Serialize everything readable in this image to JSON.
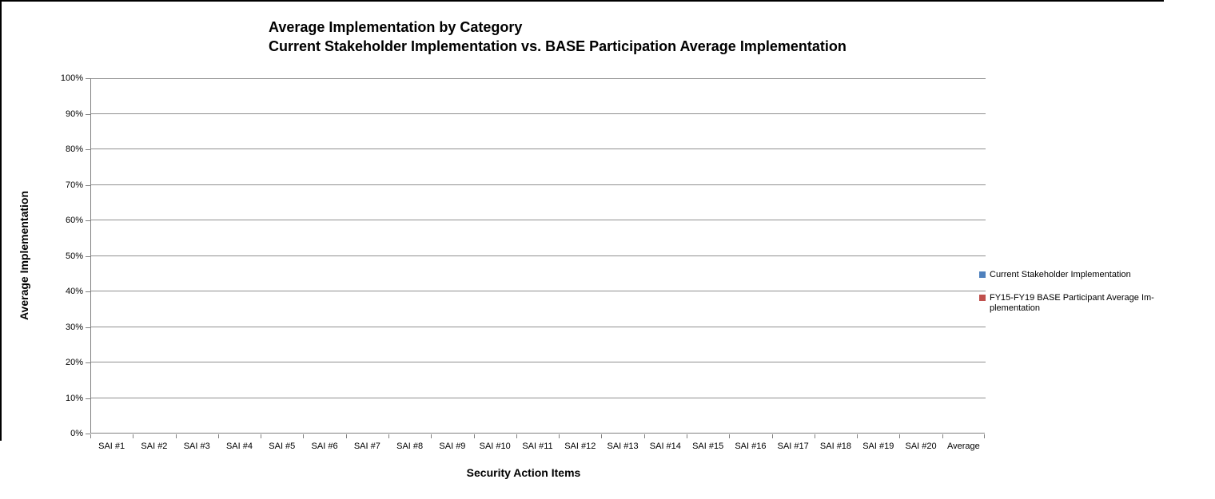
{
  "chart_data": {
    "type": "bar",
    "title": "Average Implementation by Category",
    "subtitle": "Current Stakeholder Implementation vs. BASE Participation Average Implementation",
    "xlabel": "Security Action Items",
    "ylabel": "Average Implementation",
    "categories": [
      "SAI #1",
      "SAI #2",
      "SAI #3",
      "SAI #4",
      "SAI #5",
      "SAI #6",
      "SAI #7",
      "SAI #8",
      "SAI #9",
      "SAI #10",
      "SAI #11",
      "SAI #12",
      "SAI #13",
      "SAI #14",
      "SAI #15",
      "SAI #16",
      "SAI #17",
      "SAI #18",
      "SAI #19",
      "SAI #20",
      "Average"
    ],
    "series": [
      {
        "name": "Current Stakeholder Implementation",
        "color": "#4F81BD",
        "values": [
          0,
          0,
          0,
          0,
          0,
          0,
          0,
          0,
          0,
          0,
          0,
          0,
          0,
          0,
          0,
          0,
          0,
          0,
          0,
          0,
          0
        ]
      },
      {
        "name": "FY15-FY19 BASE Participant Average Implementation",
        "color": "#C0504D",
        "values": [
          0,
          0,
          0,
          0,
          0,
          0,
          0,
          0,
          0,
          0,
          0,
          0,
          0,
          0,
          0,
          0,
          0,
          0,
          0,
          0,
          0
        ]
      }
    ],
    "ylim": [
      0,
      100
    ],
    "ytick_labels": [
      "0%",
      "10%",
      "20%",
      "30%",
      "40%",
      "50%",
      "60%",
      "70%",
      "80%",
      "90%",
      "100%"
    ],
    "grid": true,
    "legend_position": "right",
    "legend_entries": [
      {
        "color": "#4F81BD",
        "label_lines": [
          "Current Stakeholder Implementation"
        ]
      },
      {
        "color": "#C0504D",
        "label_lines": [
          "FY15-FY19 BASE Participant Average Im-",
          "plementation"
        ]
      }
    ]
  }
}
